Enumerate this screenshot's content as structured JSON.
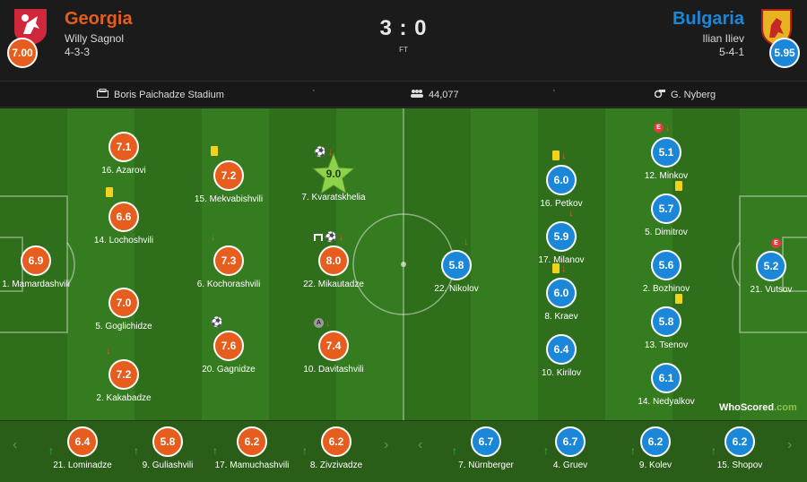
{
  "home": {
    "name": "Georgia",
    "manager": "Willy Sagnol",
    "formation": "4-3-3",
    "rating": "7.00",
    "color": "#e65d1e"
  },
  "away": {
    "name": "Bulgaria",
    "manager": "Ilian Iliev",
    "formation": "5-4-1",
    "rating": "5.95",
    "color": "#1b87d8"
  },
  "score": "3 : 0",
  "status": "FT",
  "info": {
    "stadium": "Boris Paichadze Stadium",
    "attendance": "44,077",
    "referee": "G. Nyberg",
    "separator": "·"
  },
  "home_players": [
    {
      "name": "1. Mamardashvili",
      "rating": "6.9"
    },
    {
      "name": "16. Azarovi",
      "rating": "7.1"
    },
    {
      "name": "14. Lochoshvili",
      "rating": "6.6"
    },
    {
      "name": "5. Goglichidze",
      "rating": "7.0"
    },
    {
      "name": "2. Kakabadze",
      "rating": "7.2"
    },
    {
      "name": "15. Mekvabishvili",
      "rating": "7.2"
    },
    {
      "name": "6. Kochorashvili",
      "rating": "7.3"
    },
    {
      "name": "20. Gagnidze",
      "rating": "7.6"
    },
    {
      "name": "7. Kvaratskhelia",
      "rating": "9.0"
    },
    {
      "name": "22. Mikautadze",
      "rating": "8.0"
    },
    {
      "name": "10. Davitashvili",
      "rating": "7.4"
    }
  ],
  "away_players": [
    {
      "name": "21. Vutsov",
      "rating": "5.2"
    },
    {
      "name": "12. Minkov",
      "rating": "5.1"
    },
    {
      "name": "5. Dimitrov",
      "rating": "5.7"
    },
    {
      "name": "2. Bozhinov",
      "rating": "5.6"
    },
    {
      "name": "13. Tsenov",
      "rating": "5.8"
    },
    {
      "name": "14. Nedyalkov",
      "rating": "6.1"
    },
    {
      "name": "16. Petkov",
      "rating": "6.0"
    },
    {
      "name": "17. Milanov",
      "rating": "5.9"
    },
    {
      "name": "8. Kraev",
      "rating": "6.0"
    },
    {
      "name": "10. Kirilov",
      "rating": "6.4"
    },
    {
      "name": "22. Nikolov",
      "rating": "5.8"
    }
  ],
  "home_subs": [
    {
      "name": "21. Lominadze",
      "rating": "6.4"
    },
    {
      "name": "9. Guliashvili",
      "rating": "5.8"
    },
    {
      "name": "17. Mamuchashvili",
      "rating": "6.2"
    },
    {
      "name": "8. Zivzivadze",
      "rating": "6.2"
    }
  ],
  "away_subs": [
    {
      "name": "7. Nürnberger",
      "rating": "6.7"
    },
    {
      "name": "4. Gruev",
      "rating": "6.7"
    },
    {
      "name": "9. Kolev",
      "rating": "6.2"
    },
    {
      "name": "15. Shopov",
      "rating": "6.2"
    }
  ],
  "event_letters": {
    "error": "E",
    "assist": "A"
  },
  "icons": {
    "ball": "⚽",
    "arrow_down": "↓",
    "arrow_up": "↑",
    "chevron_left": "‹",
    "chevron_right": "›"
  },
  "brand": {
    "left": "WhoScored",
    "right": ".com"
  }
}
